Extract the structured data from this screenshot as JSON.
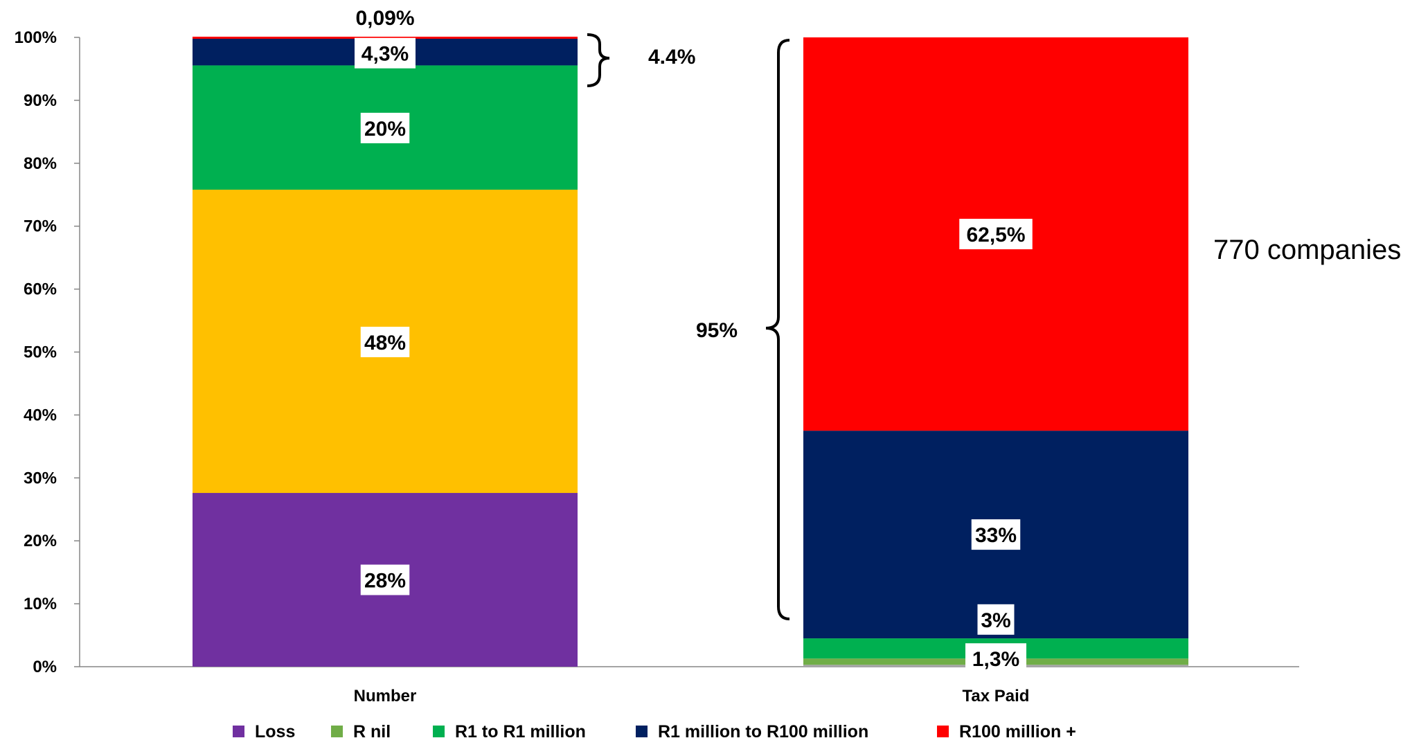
{
  "chart_data": {
    "type": "bar",
    "stacked": true,
    "normalized": true,
    "categories": [
      "Number",
      "Tax Paid"
    ],
    "series": [
      {
        "name": "Loss",
        "color": "#7030A0",
        "values": [
          27.61,
          0.0
        ]
      },
      {
        "name": "R nil",
        "color": "#70AD47",
        "values": [
          0.0,
          1.3
        ]
      },
      {
        "name": "R1 to R1 million",
        "color": "#00B050",
        "values": [
          48,
          3.2
        ]
      },
      {
        "name": "R1 million to R100 million",
        "color": "#002060",
        "values": [
          20,
          33
        ]
      },
      {
        "name": "R100 million +",
        "color": "#FF0000",
        "values": [
          4.3,
          62.5
        ]
      }
    ],
    "unstacked_series": [
      {
        "color": "#FFC000",
        "category": "Number",
        "position_after": "Loss"
      }
    ],
    "data_labels": [
      {
        "category": "Number",
        "text": "28%",
        "at": 13.8
      },
      {
        "category": "Number",
        "text": "48%",
        "at": 51.6
      },
      {
        "category": "Number",
        "text": "20%",
        "at": 85.6
      },
      {
        "category": "Number",
        "text": "4,3%",
        "at": 97.5
      },
      {
        "category": "Number",
        "text": "0,09%",
        "at": 103.2,
        "boxed": false
      },
      {
        "category": "Tax Paid",
        "text": "62,5%",
        "at": 68.75
      },
      {
        "category": "Tax Paid",
        "text": "33%",
        "at": 21.0
      },
      {
        "category": "Tax Paid",
        "text": "3%",
        "at": 7.5
      },
      {
        "category": "Tax Paid",
        "text": "1,3%",
        "at": 1.3
      }
    ],
    "annotations": {
      "number_bracket_label": "4.4%",
      "taxpaid_bracket_label": "95%",
      "side_note": "770 companies"
    },
    "yticks": [
      "0%",
      "10%",
      "20%",
      "30%",
      "40%",
      "50%",
      "60%",
      "70%",
      "80%",
      "90%",
      "100%"
    ],
    "ylim": [
      0,
      100
    ],
    "legend_position": "bottom",
    "grid": false
  }
}
